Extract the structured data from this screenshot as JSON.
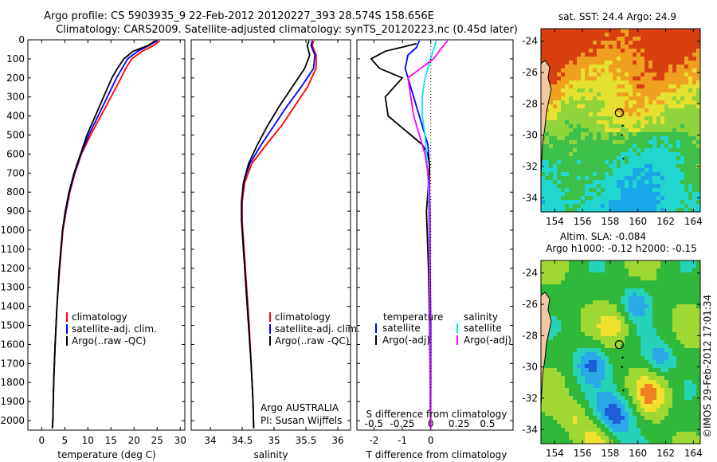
{
  "header": {
    "title_line1": "Argo profile: CS 5903935_9 22-Feb-2012 20120227_393 28.574S 158.656E",
    "title_line2": "Climatology: CARS2009. Satellite-adjusted climatology: synTS_20120223.nc (0.45d later)"
  },
  "colors": {
    "climatology": "#ff0000",
    "satellite": "#0000ff",
    "argo": "#000000",
    "satellite_salinity": "#00e5ff",
    "argo_salinity_adj": "#ff00ff"
  },
  "footer": {
    "watermark": "©IMOS 29-Feb-2012 17:01:34"
  },
  "chart_data": [
    {
      "type": "line",
      "id": "temperature",
      "xlabel": "temperature (deg C)",
      "ylabel": "",
      "xlim": [
        -3,
        31
      ],
      "ylim": [
        2050,
        0
      ],
      "xticks": [
        "0",
        "5",
        "10",
        "15",
        "20",
        "25",
        "30"
      ],
      "xtick_values": [
        0,
        5,
        10,
        15,
        20,
        25,
        30
      ],
      "yticks": [
        "0",
        "100",
        "200",
        "300",
        "400",
        "500",
        "600",
        "700",
        "800",
        "900",
        "1000",
        "1100",
        "1200",
        "1300",
        "1400",
        "1500",
        "1600",
        "1700",
        "1800",
        "1900",
        "2000"
      ],
      "ytick_values": [
        0,
        100,
        200,
        300,
        400,
        500,
        600,
        700,
        800,
        900,
        1000,
        1100,
        1200,
        1300,
        1400,
        1500,
        1600,
        1700,
        1800,
        1900,
        2000
      ],
      "legend": [
        "climatology",
        "satellite-adj. clim.",
        "Argo(..raw -QC)"
      ],
      "legend_position": "lower-center",
      "series": [
        {
          "name": "climatology",
          "color": "#ff0000",
          "depth": [
            5,
            30,
            60,
            100,
            150,
            200,
            300,
            400,
            500,
            600,
            700,
            800,
            900,
            1000,
            1200,
            1400,
            1600,
            1800,
            2000,
            2040
          ],
          "x": [
            25.6,
            24.2,
            21.8,
            19.5,
            18.2,
            17.2,
            15.0,
            12.8,
            10.6,
            8.6,
            7.2,
            6.1,
            5.3,
            4.6,
            3.9,
            3.3,
            2.9,
            2.6,
            2.4,
            2.3
          ]
        },
        {
          "name": "satellite-adj. clim.",
          "color": "#0000ff",
          "depth": [
            5,
            30,
            60,
            100,
            150,
            200,
            300,
            400,
            500,
            600,
            700,
            800,
            900,
            1000,
            1200,
            1400,
            1600,
            1800,
            2000,
            2040
          ],
          "x": [
            25.0,
            23.2,
            20.8,
            18.6,
            17.4,
            16.2,
            14.2,
            12.2,
            10.2,
            8.5,
            7.1,
            6.0,
            5.2,
            4.5,
            3.8,
            3.3,
            2.9,
            2.6,
            2.4,
            2.3
          ]
        },
        {
          "name": "Argo(..raw -QC)",
          "color": "#000000",
          "depth": [
            5,
            30,
            60,
            100,
            150,
            200,
            300,
            400,
            500,
            600,
            700,
            800,
            900,
            1000,
            1200,
            1400,
            1600,
            1800,
            2000,
            2040
          ],
          "x": [
            24.6,
            23.0,
            19.8,
            17.8,
            16.4,
            15.2,
            13.4,
            11.6,
            9.8,
            8.4,
            7.0,
            5.9,
            5.1,
            4.5,
            3.8,
            3.3,
            2.9,
            2.6,
            2.4,
            2.3
          ]
        }
      ]
    },
    {
      "type": "line",
      "id": "salinity",
      "xlabel": "salinity",
      "xlim": [
        33.7,
        36.2
      ],
      "ylim": [
        2050,
        0
      ],
      "xticks": [
        "34",
        "34.5",
        "35",
        "35.5",
        "36"
      ],
      "xtick_values": [
        34,
        34.5,
        35,
        35.5,
        36
      ],
      "legend": [
        "climatology",
        "satellite-adj. clim.",
        "Argo(..raw -QC)"
      ],
      "legend_position": "lower-center",
      "annotation_line1": "Argo AUSTRALIA",
      "annotation_line2": "PI: Susan Wijffels",
      "series": [
        {
          "name": "climatology",
          "color": "#ff0000",
          "depth": [
            5,
            30,
            80,
            150,
            250,
            350,
            450,
            550,
            650,
            750,
            850,
            950,
            1100,
            1300,
            1500,
            1700,
            1900,
            2040
          ],
          "x": [
            35.62,
            35.6,
            35.66,
            35.66,
            35.52,
            35.32,
            35.12,
            34.88,
            34.65,
            34.54,
            34.5,
            34.5,
            34.53,
            34.57,
            34.61,
            34.64,
            34.67,
            34.68
          ]
        },
        {
          "name": "satellite-adj. clim.",
          "color": "#0000ff",
          "depth": [
            5,
            30,
            80,
            150,
            250,
            350,
            450,
            550,
            650,
            750,
            850,
            950,
            1100,
            1300,
            1500,
            1700,
            1900,
            2040
          ],
          "x": [
            35.6,
            35.58,
            35.64,
            35.62,
            35.42,
            35.2,
            35.0,
            34.8,
            34.62,
            34.52,
            34.49,
            34.49,
            34.52,
            34.56,
            34.6,
            34.64,
            34.67,
            34.68
          ]
        },
        {
          "name": "Argo(..raw -QC)",
          "color": "#000000",
          "depth": [
            5,
            30,
            80,
            150,
            250,
            350,
            450,
            550,
            650,
            750,
            850,
            950,
            1100,
            1300,
            1500,
            1700,
            1900,
            2040
          ],
          "x": [
            35.55,
            35.52,
            35.56,
            35.48,
            35.28,
            35.08,
            34.9,
            34.74,
            34.6,
            34.52,
            34.49,
            34.49,
            34.52,
            34.56,
            34.6,
            34.64,
            34.67,
            34.68
          ]
        }
      ]
    },
    {
      "type": "line",
      "id": "differences",
      "xlabel": "T difference from climatology",
      "xlabel_top": "S difference from climatology",
      "xlim": [
        -2.6,
        2.9
      ],
      "ylim": [
        2050,
        0
      ],
      "xticks": [
        "-2",
        "-1",
        "0"
      ],
      "xtick_values": [
        -2,
        -1,
        0
      ],
      "xticks_upper": [
        "-0.5",
        "-0.25",
        "0",
        "0.25",
        "0.5"
      ],
      "xtick_upper_values": [
        -2,
        -1,
        0,
        1,
        2
      ],
      "legend_t_title": "temperature",
      "legend_s_title": "salinity",
      "legend": [
        "satellite",
        "Argo(-adj)",
        "satellite",
        "Argo(-adj)"
      ],
      "series": [
        {
          "name": "temperature satellite",
          "color": "#0000ff",
          "depth": [
            5,
            40,
            80,
            150,
            250,
            350,
            450,
            550,
            650,
            750,
            900,
            1200,
            1500,
            1800,
            2040
          ],
          "x": [
            -0.4,
            -0.5,
            -0.8,
            -0.9,
            -0.7,
            -0.5,
            -0.3,
            -0.1,
            -0.05,
            -0.05,
            -0.03,
            -0.02,
            0.0,
            0.0,
            0.0
          ]
        },
        {
          "name": "temperature Argo(-adj)",
          "color": "#000000",
          "depth": [
            20,
            60,
            100,
            150,
            200,
            300,
            400,
            500,
            550,
            600,
            650,
            700,
            800,
            900,
            1200,
            1500,
            1800,
            2040
          ],
          "x": [
            -0.5,
            -1.6,
            -2.1,
            -1.8,
            -1.0,
            -1.6,
            -1.5,
            -0.7,
            -0.3,
            -0.1,
            -0.05,
            -0.05,
            -0.1,
            -0.15,
            -0.08,
            -0.04,
            -0.02,
            -0.01
          ]
        },
        {
          "name": "salinity satellite",
          "color": "#00e5ff",
          "depth": [
            5,
            50,
            100,
            200,
            300,
            400,
            500,
            600,
            700,
            800,
            1000,
            1300,
            1600,
            1900,
            2040
          ],
          "x": [
            0.2,
            0.1,
            0.0,
            -0.2,
            -0.3,
            -0.3,
            -0.2,
            -0.15,
            -0.1,
            -0.08,
            -0.06,
            -0.04,
            -0.02,
            -0.01,
            0.0
          ]
        },
        {
          "name": "salinity Argo(-adj)",
          "color": "#ff00ff",
          "depth": [
            5,
            40,
            100,
            200,
            300,
            400,
            500,
            600,
            700,
            800,
            1000,
            1300,
            1600,
            1900,
            2040
          ],
          "x": [
            0.6,
            0.4,
            0.1,
            -0.8,
            -0.7,
            -0.6,
            -0.4,
            -0.2,
            -0.1,
            -0.05,
            -0.04,
            -0.03,
            -0.02,
            -0.01,
            0.0
          ]
        }
      ]
    },
    {
      "type": "heatmap",
      "id": "sst-map",
      "title": "sat. SST: 24.4 Argo: 24.9",
      "xticks": [
        "154",
        "156",
        "158",
        "160",
        "162",
        "164"
      ],
      "xtick_values": [
        154,
        156,
        158,
        160,
        162,
        164
      ],
      "yticks": [
        "-24",
        "-26",
        "-28",
        "-30",
        "-32",
        "-34"
      ],
      "ytick_values": [
        -24,
        -26,
        -28,
        -30,
        -32,
        -34
      ],
      "xlim": [
        153,
        164.5
      ],
      "ylim": [
        -23.2,
        -34.9
      ],
      "marker_lon": 158.656,
      "marker_lat": -28.574
    },
    {
      "type": "heatmap",
      "id": "sla-map",
      "title_line1": "Altim. SLA: -0.084",
      "title_line2": "Argo h1000: -0.12 h2000: -0.15",
      "xticks": [
        "154",
        "156",
        "158",
        "160",
        "162",
        "164"
      ],
      "xtick_values": [
        154,
        156,
        158,
        160,
        162,
        164
      ],
      "yticks": [
        "-24",
        "-26",
        "-28",
        "-30",
        "-32",
        "-34"
      ],
      "ytick_values": [
        -24,
        -26,
        -28,
        -30,
        -32,
        -34
      ],
      "xlim": [
        153,
        164.5
      ],
      "ylim": [
        -23.2,
        -34.9
      ],
      "marker_lon": 158.656,
      "marker_lat": -28.574
    }
  ]
}
